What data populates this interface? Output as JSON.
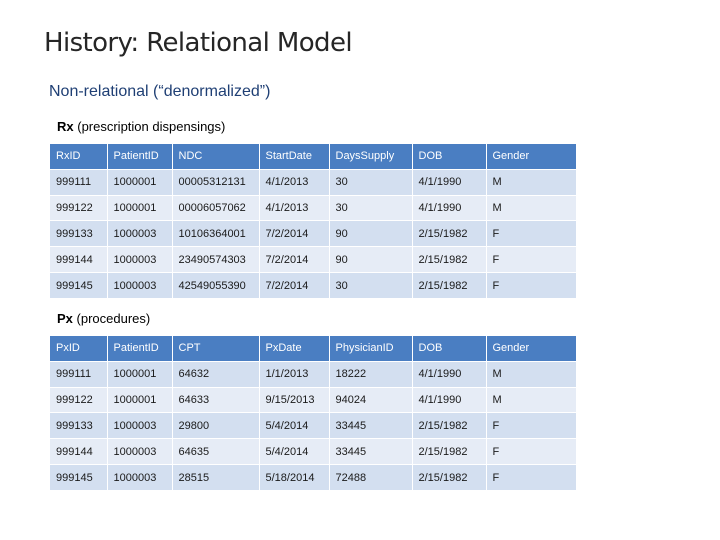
{
  "title": "History: Relational Model",
  "subtitle": "Non-relational (“denormalized”)",
  "rx": {
    "caption_bold": "Rx",
    "caption_rest": " (prescription dispensings)",
    "headers": [
      "RxID",
      "PatientID",
      "NDC",
      "StartDate",
      "DaysSupply",
      "DOB",
      "Gender"
    ],
    "rows": [
      [
        "999111",
        "1000001",
        "00005312131",
        "4/1/2013",
        "30",
        "4/1/1990",
        "M"
      ],
      [
        "999122",
        "1000001",
        "00006057062",
        "4/1/2013",
        "30",
        "4/1/1990",
        "M"
      ],
      [
        "999133",
        "1000003",
        "10106364001",
        "7/2/2014",
        "90",
        "2/15/1982",
        "F"
      ],
      [
        "999144",
        "1000003",
        "23490574303",
        "7/2/2014",
        "90",
        "2/15/1982",
        "F"
      ],
      [
        "999145",
        "1000003",
        "42549055390",
        "7/2/2014",
        "30",
        "2/15/1982",
        "F"
      ]
    ]
  },
  "px": {
    "caption_bold": "Px",
    "caption_rest": " (procedures)",
    "headers": [
      "PxID",
      "PatientID",
      "CPT",
      "PxDate",
      "PhysicianID",
      "DOB",
      "Gender"
    ],
    "rows": [
      [
        "999111",
        "1000001",
        "64632",
        "1/1/2013",
        "18222",
        "4/1/1990",
        "M"
      ],
      [
        "999122",
        "1000001",
        "64633",
        "9/15/2013",
        "94024",
        "4/1/1990",
        "M"
      ],
      [
        "999133",
        "1000003",
        "29800",
        "5/4/2014",
        "33445",
        "2/15/1982",
        "F"
      ],
      [
        "999144",
        "1000003",
        "64635",
        "5/4/2014",
        "33445",
        "2/15/1982",
        "F"
      ],
      [
        "999145",
        "1000003",
        "28515",
        "5/18/2014",
        "72488",
        "2/15/1982",
        "F"
      ]
    ]
  },
  "colors": {
    "header_bg": "#4a7ec2",
    "row_light": "#e6ecf6",
    "row_dark": "#d3dff0",
    "subtitle": "#1f3f74"
  }
}
